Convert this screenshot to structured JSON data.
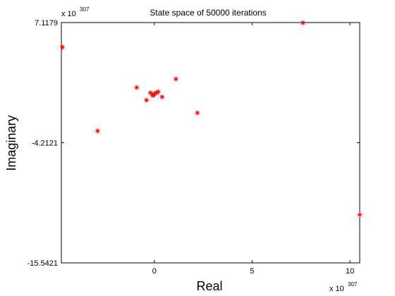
{
  "chart_data": {
    "type": "scatter",
    "title": "State space of 50000 iterations",
    "xlabel": "Real",
    "ylabel": "Imaginary",
    "xlim": [
      -4.75,
      10.5
    ],
    "ylim": [
      -15.5421,
      7.1179
    ],
    "x_ticks": [
      {
        "value": 0,
        "label": "0"
      },
      {
        "value": 5,
        "label": "5"
      },
      {
        "value": 10,
        "label": "10"
      }
    ],
    "y_ticks": [
      {
        "value": 7.1179,
        "label": "7.1179"
      },
      {
        "value": -4.2121,
        "label": "-4.2121"
      },
      {
        "value": -15.5421,
        "label": "-15.5421"
      }
    ],
    "x_exponent": {
      "base": "x 10",
      "power": "307"
    },
    "y_exponent": {
      "base": "x 10",
      "power": "307"
    },
    "marker": "*",
    "marker_color": "#ff0000",
    "grid": false,
    "points": [
      {
        "x": 7.6,
        "y": 7.1
      },
      {
        "x": -4.7,
        "y": 4.8
      },
      {
        "x": 10.5,
        "y": -11.0
      },
      {
        "x": -2.9,
        "y": -3.1
      },
      {
        "x": -0.9,
        "y": 1.0
      },
      {
        "x": 1.1,
        "y": 1.8
      },
      {
        "x": 2.2,
        "y": -1.4
      },
      {
        "x": -0.4,
        "y": -0.2
      },
      {
        "x": 0.4,
        "y": 0.1
      },
      {
        "x": -0.2,
        "y": 0.5
      },
      {
        "x": -0.1,
        "y": 0.3
      },
      {
        "x": 0.0,
        "y": 0.4
      },
      {
        "x": 0.1,
        "y": 0.5
      },
      {
        "x": 0.2,
        "y": 0.6
      },
      {
        "x": -0.05,
        "y": 0.25
      }
    ]
  }
}
